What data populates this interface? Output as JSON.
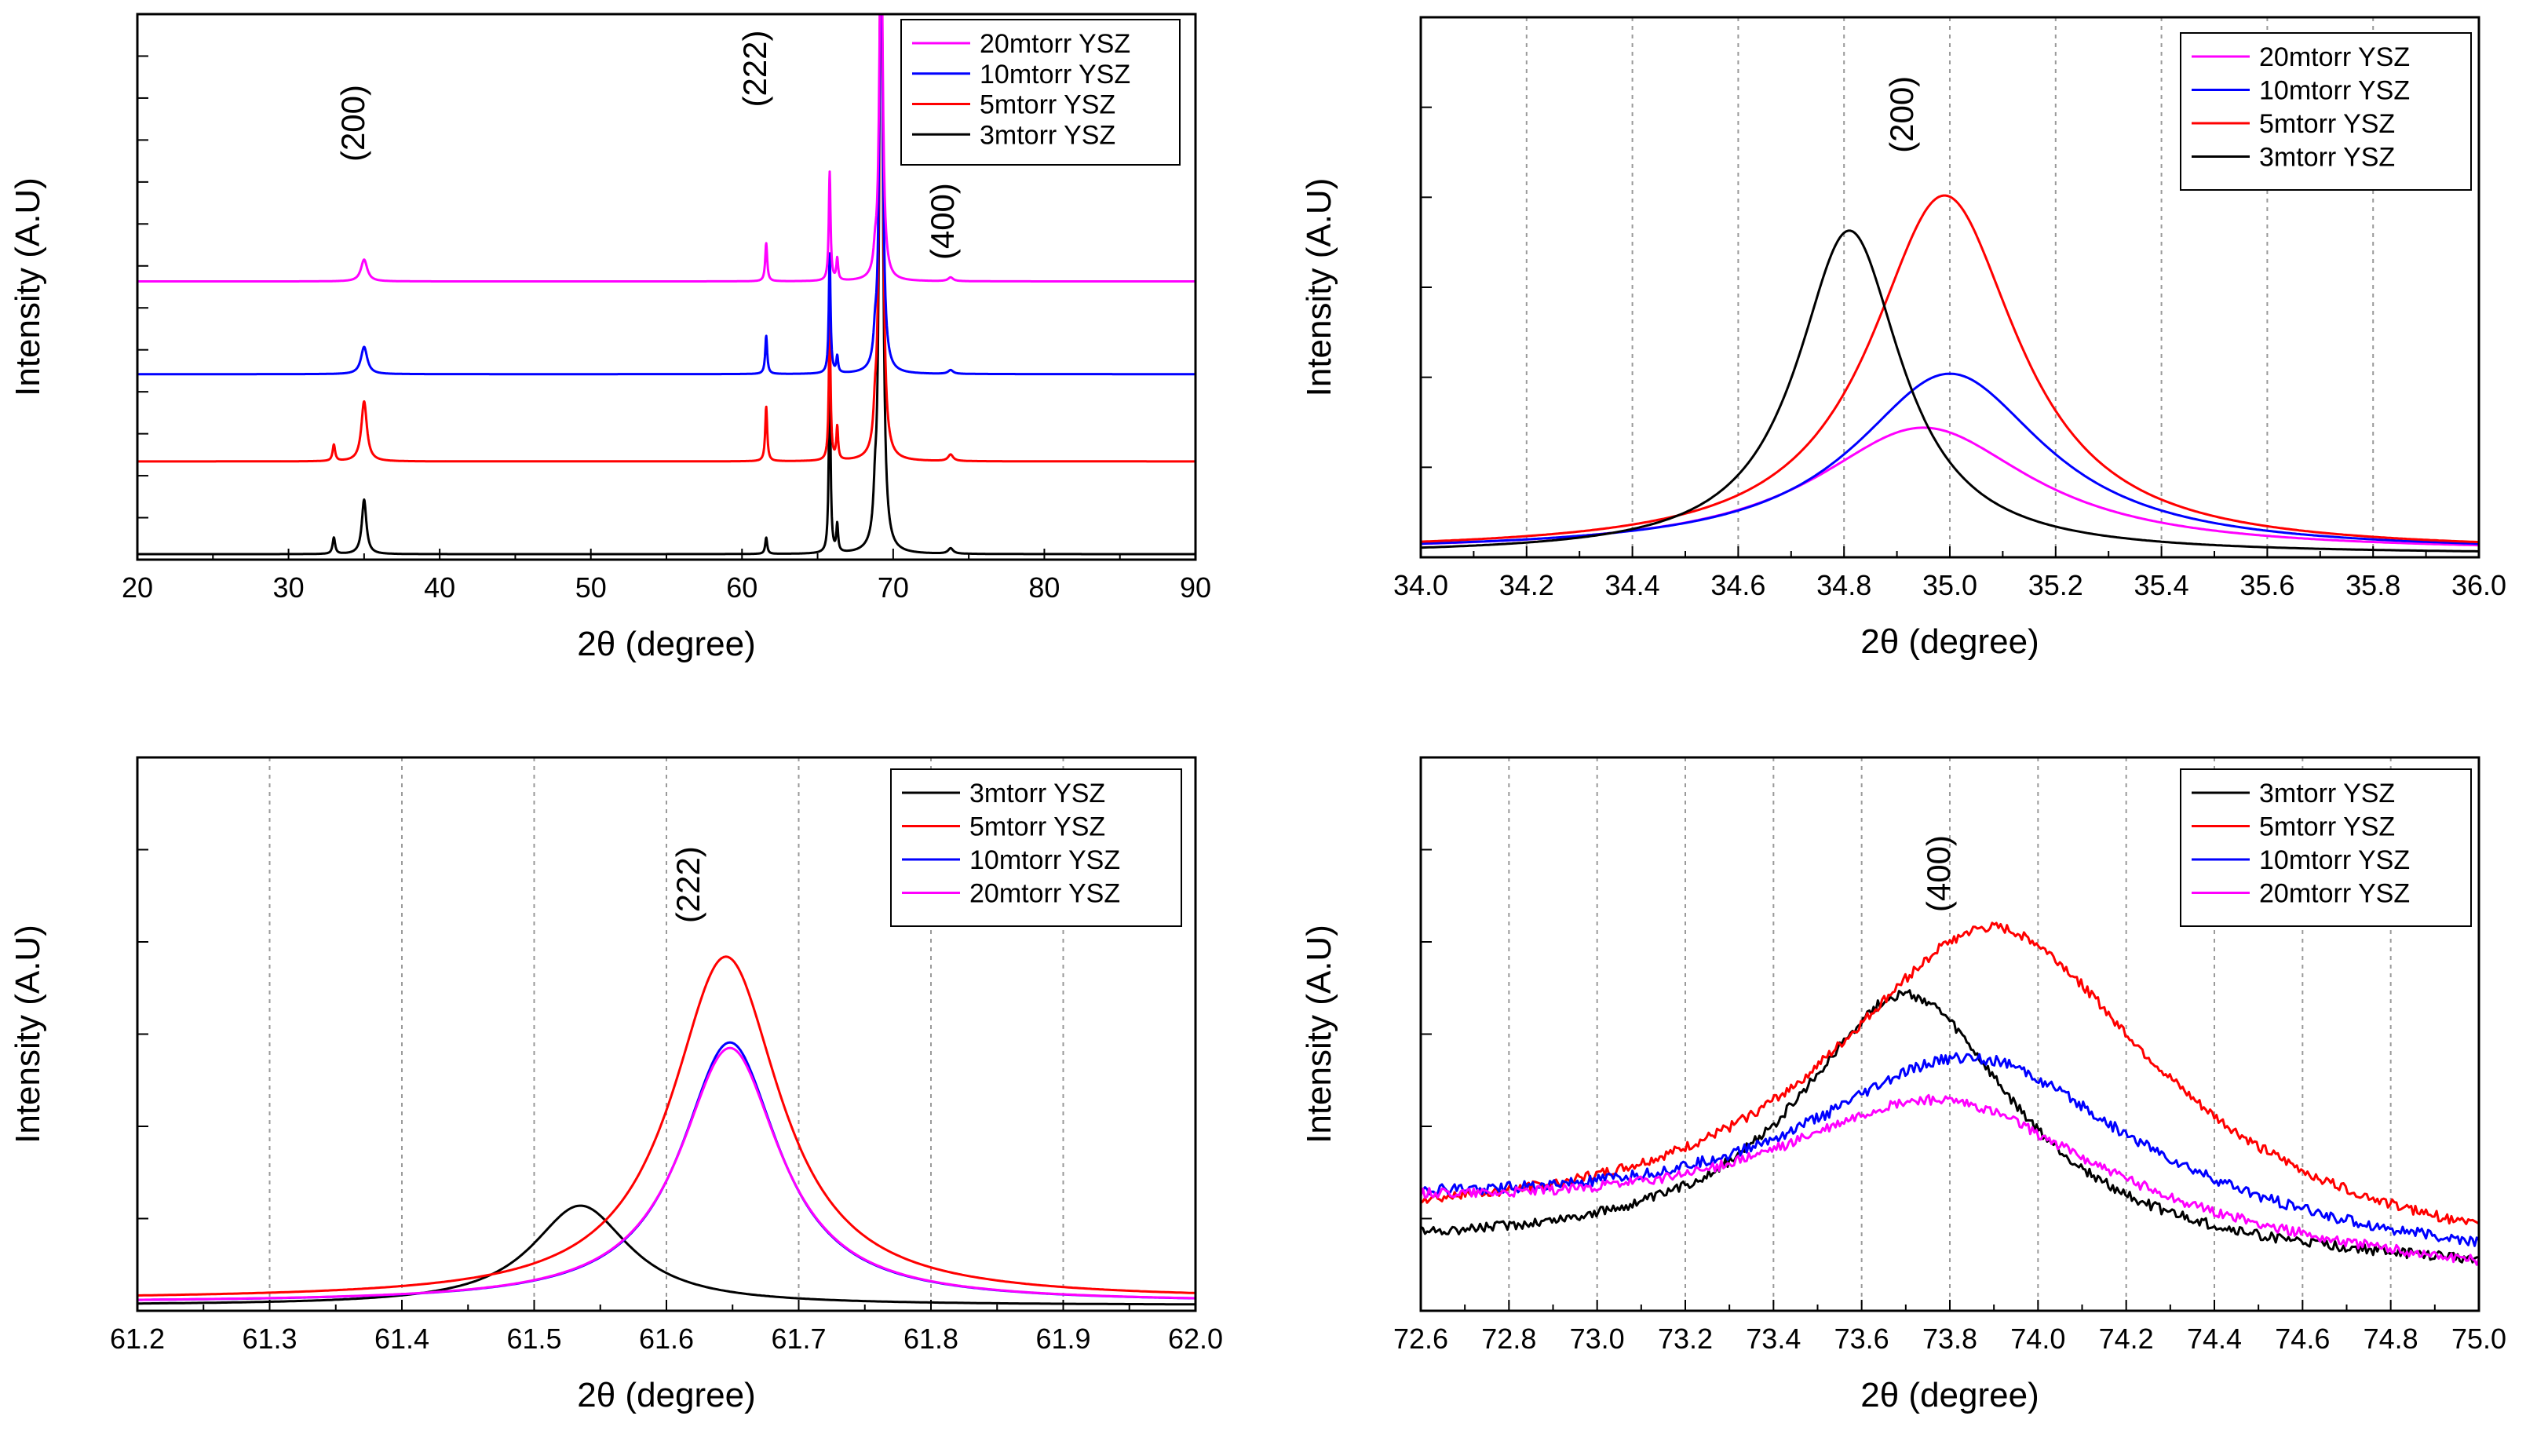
{
  "figure": {
    "xlabel": "2θ (degree)",
    "ylabel": "Intensity (A.U)"
  },
  "chart_data": [
    {
      "id": "full",
      "type": "line",
      "xlabel": "2θ (degree)",
      "ylabel": "Intensity (A.U)",
      "xlim": [
        20,
        90
      ],
      "ylim": [
        0,
        100
      ],
      "xticks": [
        "20",
        "30",
        "40",
        "50",
        "60",
        "70",
        "80",
        "90"
      ],
      "grid": false,
      "legend_position": "top-right",
      "legend": [
        "20mtorr YSZ",
        "10mtorr YSZ",
        "5mtorr YSZ",
        "3mtorr YSZ"
      ],
      "annotations": [
        {
          "text": "(200)",
          "x": 35.0,
          "y": 80
        },
        {
          "text": "(222)",
          "x": 61.6,
          "y": 90
        },
        {
          "text": "(400)",
          "x": 74.0,
          "y": 62
        }
      ],
      "series": [
        {
          "name": "20mtorr YSZ",
          "color": "#ff00ff",
          "baseline": 51,
          "peaks": [
            [
              33.0,
              0,
              0.12
            ],
            [
              35.0,
              4,
              0.25
            ],
            [
              61.6,
              7,
              0.08
            ],
            [
              65.8,
              20,
              0.07
            ],
            [
              66.3,
              4,
              0.07
            ],
            [
              68.8,
              3,
              0.12
            ],
            [
              69.2,
              70,
              0.13
            ],
            [
              73.8,
              0.7,
              0.2
            ]
          ]
        },
        {
          "name": "10mtorr YSZ",
          "color": "#0000ff",
          "baseline": 34,
          "peaks": [
            [
              33.0,
              0,
              0.12
            ],
            [
              35.0,
              5,
              0.25
            ],
            [
              61.6,
              7,
              0.08
            ],
            [
              65.8,
              22,
              0.07
            ],
            [
              66.3,
              3,
              0.07
            ],
            [
              68.8,
              4,
              0.12
            ],
            [
              69.2,
              85,
              0.13
            ],
            [
              73.8,
              0.7,
              0.2
            ]
          ]
        },
        {
          "name": "5mtorr YSZ",
          "color": "#ff0000",
          "baseline": 18,
          "peaks": [
            [
              33.0,
              3,
              0.1
            ],
            [
              35.0,
              11,
              0.22
            ],
            [
              61.6,
              10,
              0.08
            ],
            [
              65.8,
              26,
              0.07
            ],
            [
              66.3,
              6,
              0.07
            ],
            [
              68.8,
              5,
              0.12
            ],
            [
              69.2,
              110,
              0.13
            ],
            [
              73.8,
              1.2,
              0.2
            ]
          ]
        },
        {
          "name": "3mtorr YSZ",
          "color": "#000000",
          "baseline": 1,
          "peaks": [
            [
              33.0,
              3,
              0.1
            ],
            [
              35.0,
              10,
              0.18
            ],
            [
              61.6,
              3,
              0.08
            ],
            [
              65.8,
              34,
              0.07
            ],
            [
              66.3,
              5,
              0.07
            ],
            [
              68.8,
              6,
              0.12
            ],
            [
              69.2,
              130,
              0.13
            ],
            [
              73.8,
              1,
              0.2
            ]
          ]
        }
      ]
    },
    {
      "id": "p200",
      "type": "line",
      "xlabel": "2θ (degree)",
      "ylabel": "Intensity (A.U)",
      "xlim": [
        34.0,
        36.0
      ],
      "ylim": [
        0,
        100
      ],
      "xticks": [
        "34.0",
        "34.2",
        "34.4",
        "34.6",
        "34.8",
        "35.0",
        "35.2",
        "35.4",
        "35.6",
        "35.8",
        "36.0"
      ],
      "grid": true,
      "legend_position": "top-right",
      "legend": [
        "20mtorr YSZ",
        "10mtorr YSZ",
        "5mtorr YSZ",
        "3mtorr YSZ"
      ],
      "annotations": [
        {
          "text": "(200)",
          "x": 34.93,
          "y": 82
        }
      ],
      "series": [
        {
          "name": "20mtorr YSZ",
          "color": "#ff00ff",
          "x0": 34.0,
          "x1": 36.0,
          "baseline": 1,
          "noise": 0,
          "peaks": [
            [
              34.95,
              23,
              0.25
            ]
          ]
        },
        {
          "name": "10mtorr YSZ",
          "color": "#0000ff",
          "x0": 34.0,
          "x1": 36.0,
          "baseline": 1,
          "noise": 0,
          "peaks": [
            [
              35.0,
              33,
              0.22
            ]
          ]
        },
        {
          "name": "5mtorr YSZ",
          "color": "#ff0000",
          "x0": 34.0,
          "x1": 36.0,
          "baseline": 1,
          "noise": 0,
          "peaks": [
            [
              34.99,
              66,
              0.17
            ]
          ]
        },
        {
          "name": "3mtorr YSZ",
          "color": "#000000",
          "x0": 34.0,
          "x1": 36.0,
          "baseline": 0.5,
          "noise": 0,
          "peaks": [
            [
              34.81,
              60,
              0.12
            ]
          ]
        }
      ]
    },
    {
      "id": "p222",
      "type": "line",
      "xlabel": "2θ (degree)",
      "ylabel": "Intensity (A.U)",
      "xlim": [
        61.2,
        62.0
      ],
      "ylim": [
        0,
        100
      ],
      "xticks": [
        "61.2",
        "61.3",
        "61.4",
        "61.5",
        "61.6",
        "61.7",
        "61.8",
        "61.9",
        "62.0"
      ],
      "grid": true,
      "legend_position": "top-right",
      "legend": [
        "3mtorr YSZ",
        "5mtorr YSZ",
        "10mtorr YSZ",
        "20mtorr YSZ"
      ],
      "annotations": [
        {
          "text": "(222)",
          "x": 61.625,
          "y": 77
        }
      ],
      "series": [
        {
          "name": "3mtorr YSZ",
          "color": "#000000",
          "x0": 61.2,
          "x1": 62.0,
          "baseline": 1,
          "noise": 0,
          "peaks": [
            [
              61.535,
              18,
              0.045
            ]
          ]
        },
        {
          "name": "5mtorr YSZ",
          "color": "#ff0000",
          "x0": 61.2,
          "x1": 62.0,
          "baseline": 2,
          "noise": 0,
          "peaks": [
            [
              61.645,
              62,
              0.05
            ]
          ]
        },
        {
          "name": "10mtorr YSZ",
          "color": "#0000ff",
          "x0": 61.2,
          "x1": 62.0,
          "baseline": 1.5,
          "noise": 0,
          "peaks": [
            [
              61.648,
              47,
              0.045
            ]
          ]
        },
        {
          "name": "20mtorr YSZ",
          "color": "#ff00ff",
          "x0": 61.2,
          "x1": 62.0,
          "baseline": 1.5,
          "noise": 0,
          "peaks": [
            [
              61.648,
              46,
              0.046
            ]
          ]
        }
      ]
    },
    {
      "id": "p400",
      "type": "line",
      "xlabel": "2θ (degree)",
      "ylabel": "Intensity (A.U)",
      "xlim": [
        72.6,
        75.0
      ],
      "ylim": [
        0,
        100
      ],
      "xticks": [
        "72.6",
        "72.8",
        "73.0",
        "73.2",
        "73.4",
        "73.6",
        "73.8",
        "74.0",
        "74.2",
        "74.4",
        "74.6",
        "74.8",
        "75.0"
      ],
      "grid": true,
      "legend_position": "top-right",
      "legend": [
        "3mtorr YSZ",
        "5mtorr YSZ",
        "10mtorr YSZ",
        "20mtorr YSZ"
      ],
      "annotations": [
        {
          "text": "(400)",
          "x": 73.8,
          "y": 79
        }
      ],
      "series": [
        {
          "name": "3mtorr YSZ",
          "color": "#000000",
          "x0": 72.6,
          "x1": 75.0,
          "baseline": 11,
          "slope": -4,
          "noise": 0.9,
          "peaks": [
            [
              73.7,
              48,
              0.3
            ]
          ]
        },
        {
          "name": "5mtorr YSZ",
          "color": "#ff0000",
          "x0": 72.6,
          "x1": 75.0,
          "baseline": 14,
          "slope": -7,
          "noise": 0.9,
          "peaks": [
            [
              73.9,
              59,
              0.45
            ]
          ]
        },
        {
          "name": "10mtorr YSZ",
          "color": "#0000ff",
          "x0": 72.6,
          "x1": 75.0,
          "baseline": 18,
          "slope": -10,
          "noise": 1.0,
          "peaks": [
            [
              73.85,
              33,
              0.45
            ]
          ]
        },
        {
          "name": "20mtorr YSZ",
          "color": "#ff00ff",
          "x0": 72.6,
          "x1": 75.0,
          "baseline": 18,
          "slope": -12,
          "noise": 0.9,
          "peaks": [
            [
              73.78,
              26,
              0.45
            ]
          ]
        }
      ]
    }
  ]
}
